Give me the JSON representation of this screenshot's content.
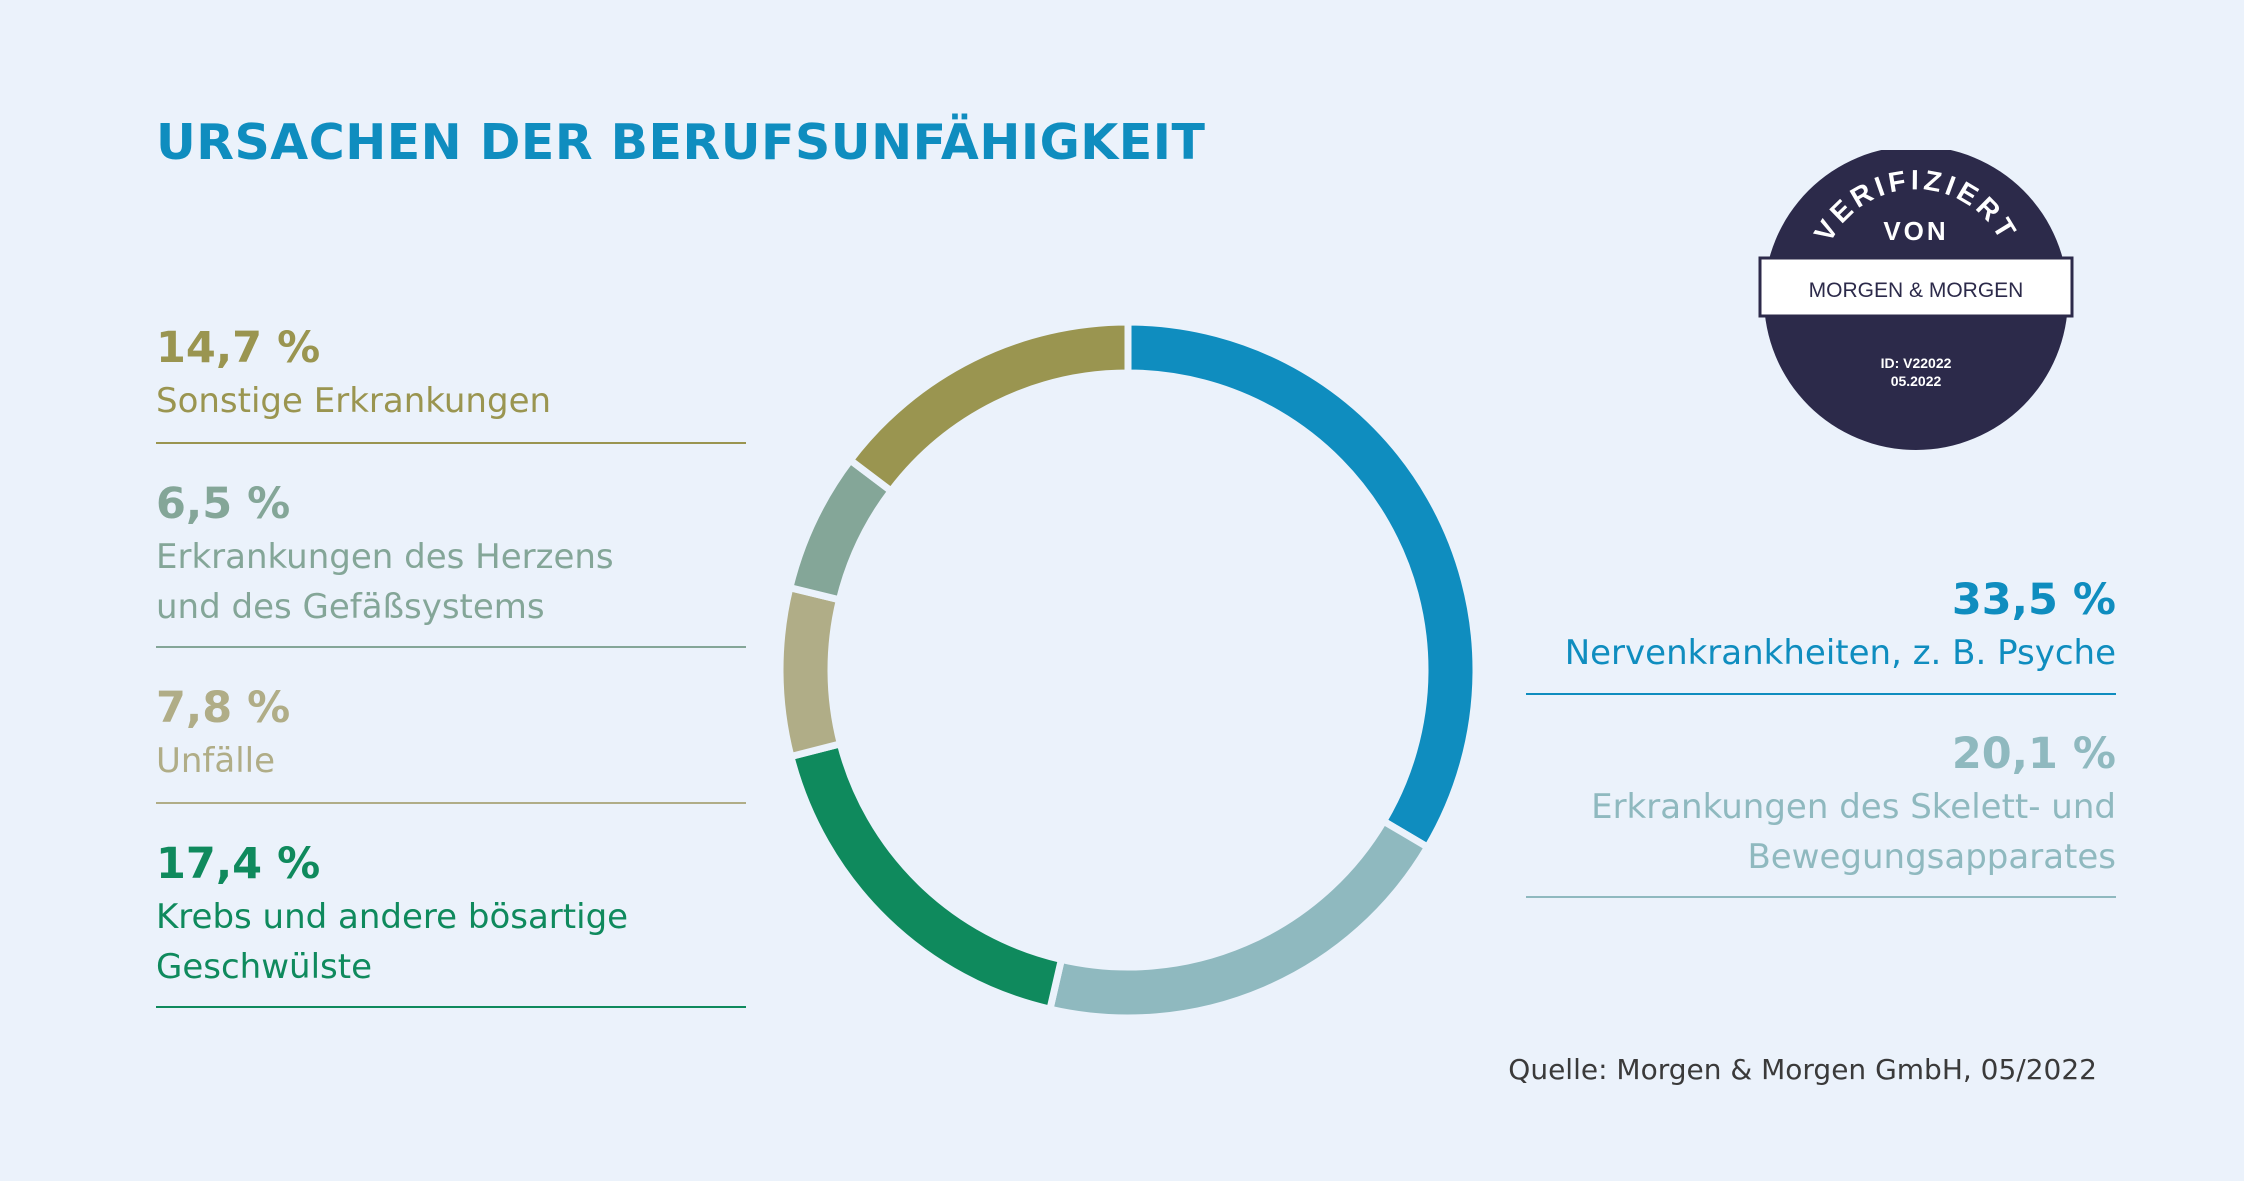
{
  "title": "URSACHEN DER BERUFSUNFÄHIGKEIT",
  "source": "Quelle: Morgen & Morgen GmbH, 05/2022",
  "seal": {
    "top_text": "VERIFIZIERT",
    "middle_text": "VON",
    "brand": "MORGEN & MORGEN",
    "id_line": "ID: V22022",
    "date_line": "05.2022",
    "colors": {
      "background": "#2c2a4a",
      "band": "#ffffff",
      "text": "#ffffff"
    }
  },
  "legend": {
    "sonstige": {
      "pct": "14,7 %",
      "label": "Sonstige Erkrankungen",
      "color": "#9a9550"
    },
    "herz": {
      "pct": "6,5 %",
      "label": "Erkrankungen des Herzens\nund des Gefäßsystems",
      "color": "#84a698"
    },
    "unfaelle": {
      "pct": "7,8 %",
      "label": "Unfälle",
      "color": "#b0ad87"
    },
    "krebs": {
      "pct": "17,4 %",
      "label": "Krebs und andere bösartige\nGeschwülste",
      "color": "#0f8a5d"
    },
    "nerven": {
      "pct": "33,5 %",
      "label": "Nervenkrankheiten, z. B. Psyche",
      "color": "#0f8dbf"
    },
    "skelett": {
      "pct": "20,1 %",
      "label": "Erkrankungen des Skelett- und\nBewegungsapparates",
      "color": "#8fb9bf"
    }
  },
  "chart_data": {
    "type": "pie",
    "donut": true,
    "title": "URSACHEN DER BERUFSUNFÄHIGKEIT",
    "unit": "%",
    "slices": [
      {
        "label": "Nervenkrankheiten, z. B. Psyche",
        "value": 33.5,
        "color": "#0f8dbf"
      },
      {
        "label": "Erkrankungen des Skelett- und Bewegungsapparates",
        "value": 20.1,
        "color": "#8fb9bf"
      },
      {
        "label": "Krebs und andere bösartige Geschwülste",
        "value": 17.4,
        "color": "#0f8a5d"
      },
      {
        "label": "Unfälle",
        "value": 7.8,
        "color": "#b0ad87"
      },
      {
        "label": "Erkrankungen des Herzens und des Gefäßsystems",
        "value": 6.5,
        "color": "#84a698"
      },
      {
        "label": "Sonstige Erkrankungen",
        "value": 14.7,
        "color": "#9a9550"
      }
    ]
  }
}
